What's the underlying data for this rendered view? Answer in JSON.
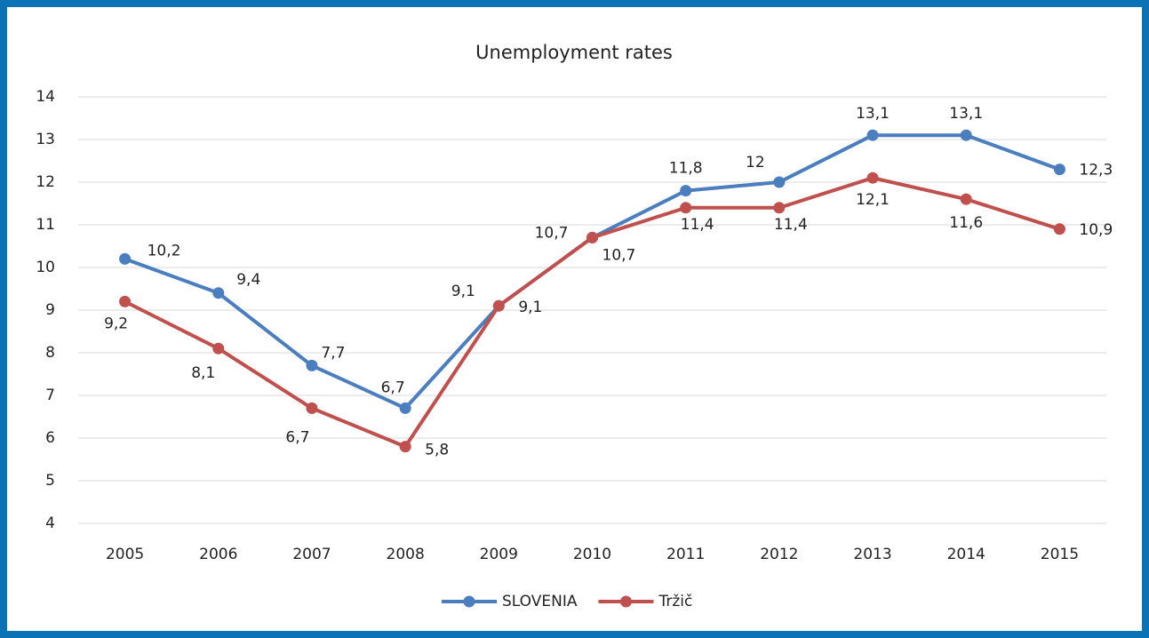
{
  "chart_data": {
    "type": "line",
    "title": "Unemployment rates",
    "categories": [
      "2005",
      "2006",
      "2007",
      "2008",
      "2009",
      "2010",
      "2011",
      "2012",
      "2013",
      "2014",
      "2015"
    ],
    "series": [
      {
        "name": "SLOVENIA",
        "color": "#4a7ebf",
        "values": [
          10.2,
          9.4,
          7.7,
          6.7,
          9.1,
          10.7,
          11.8,
          12,
          13.1,
          13.1,
          12.3
        ],
        "value_labels": [
          "10,2",
          "9,4",
          "7,7",
          "6,7",
          "9,1",
          "10,7",
          "11,8",
          "12",
          "13,1",
          "13,1",
          "12,3"
        ]
      },
      {
        "name": "Tržič",
        "color": "#c0504d",
        "values": [
          9.2,
          8.1,
          6.7,
          5.8,
          9.1,
          10.7,
          11.4,
          11.4,
          12.1,
          11.6,
          10.9
        ],
        "value_labels": [
          "9,2",
          "8,1",
          "6,7",
          "5,8",
          "9,1",
          "10,7",
          "11,4",
          "11,4",
          "12,1",
          "11,6",
          "10,9"
        ]
      }
    ],
    "ylim": [
      4,
      14
    ],
    "yticks": [
      4,
      5,
      6,
      7,
      8,
      9,
      10,
      11,
      12,
      13,
      14
    ],
    "grid": true,
    "legend": "bottom"
  }
}
